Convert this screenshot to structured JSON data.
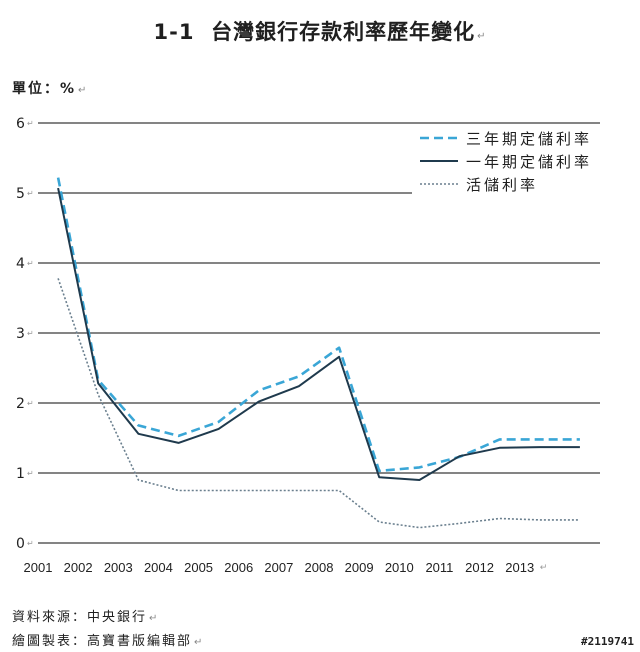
{
  "title": {
    "number": "1-1",
    "text": "台灣銀行存款利率歷年變化",
    "para_mark": "↵"
  },
  "unit_label": "單位：%",
  "para_mark": "↵",
  "chart_data": {
    "type": "line",
    "title": "台灣銀行存款利率歷年變化",
    "ylabel": "單位：%",
    "xlabel": "",
    "ylim": [
      0,
      6
    ],
    "yticks": [
      0,
      1,
      2,
      3,
      4,
      5,
      6
    ],
    "grid": true,
    "legend_position": "top-right",
    "x_tick_labels": [
      "2001",
      "2002",
      "2003",
      "2004",
      "2005",
      "2006",
      "2007",
      "2008",
      "2009",
      "2010",
      "2011",
      "2012",
      "2013"
    ],
    "x": [
      2001.5,
      2002.5,
      2003.5,
      2004.5,
      2005.5,
      2006.5,
      2007.5,
      2008.5,
      2009.5,
      2010.5,
      2011.5,
      2012.5,
      2013.5,
      2014.5
    ],
    "series": [
      {
        "name": "三年期定儲利率",
        "style": "dashed",
        "color": "#3aa6d6",
        "values": [
          5.22,
          2.33,
          1.68,
          1.53,
          1.73,
          2.18,
          2.38,
          2.79,
          1.03,
          1.08,
          1.23,
          1.48,
          1.48,
          1.48
        ]
      },
      {
        "name": "一年期定儲利率",
        "style": "solid",
        "color": "#1f3a4d",
        "values": [
          5.07,
          2.28,
          1.56,
          1.43,
          1.63,
          2.02,
          2.24,
          2.66,
          0.94,
          0.9,
          1.24,
          1.36,
          1.37,
          1.37
        ]
      },
      {
        "name": "活儲利率",
        "style": "dotted",
        "color": "#6a7f8e",
        "values": [
          3.78,
          2.12,
          0.9,
          0.75,
          0.75,
          0.75,
          0.75,
          0.75,
          0.3,
          0.22,
          0.28,
          0.35,
          0.33,
          0.33
        ]
      }
    ]
  },
  "source": {
    "line1": "資料來源：中央銀行",
    "line2": "繪圖製表：高寶書版編輯部"
  },
  "watermark": "#2119741"
}
